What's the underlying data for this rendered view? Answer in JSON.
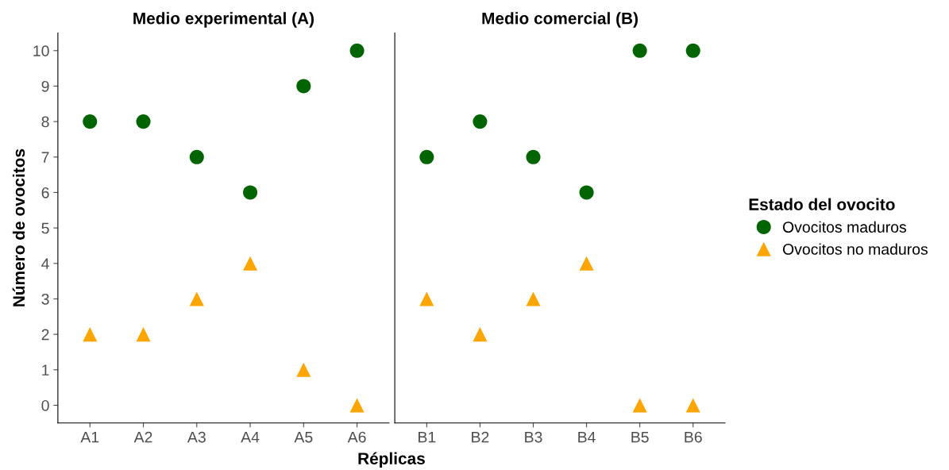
{
  "chart_data": [
    {
      "type": "scatter",
      "title": "Medio experimental (A)",
      "xlabel": "Réplicas",
      "ylabel": "Número de ovocitos",
      "categories": [
        "A1",
        "A2",
        "A3",
        "A4",
        "A5",
        "A6"
      ],
      "series": [
        {
          "name": "Ovocitos maduros",
          "color": "#006400",
          "marker": "circle",
          "values": [
            8,
            8,
            7,
            6,
            9,
            10
          ]
        },
        {
          "name": "Ovocitos no maduros",
          "color": "#ffa500",
          "marker": "triangle",
          "values": [
            2,
            2,
            3,
            4,
            1,
            0
          ]
        }
      ],
      "ylim": [
        -0.5,
        10.5
      ],
      "yticks": [
        0,
        1,
        2,
        3,
        4,
        5,
        6,
        7,
        8,
        9,
        10
      ],
      "grid": false,
      "legend": "right",
      "legend_title": "Estado del ovocito"
    },
    {
      "type": "scatter",
      "title": "Medio comercial (B)",
      "categories": [
        "B1",
        "B2",
        "B3",
        "B4",
        "B5",
        "B6"
      ],
      "series": [
        {
          "color": "#006400",
          "marker": "circle",
          "values": [
            7,
            8,
            7,
            6,
            10,
            10
          ]
        },
        {
          "color": "#ffa500",
          "marker": "triangle",
          "values": [
            3,
            2,
            3,
            4,
            0,
            0
          ]
        }
      ],
      "ylim": [
        -0.5,
        10.5
      ],
      "yticks": [
        0,
        1,
        2,
        3,
        4,
        5,
        6,
        7,
        8,
        9,
        10
      ],
      "grid": false,
      "tick_labels": "x"
    }
  ]
}
